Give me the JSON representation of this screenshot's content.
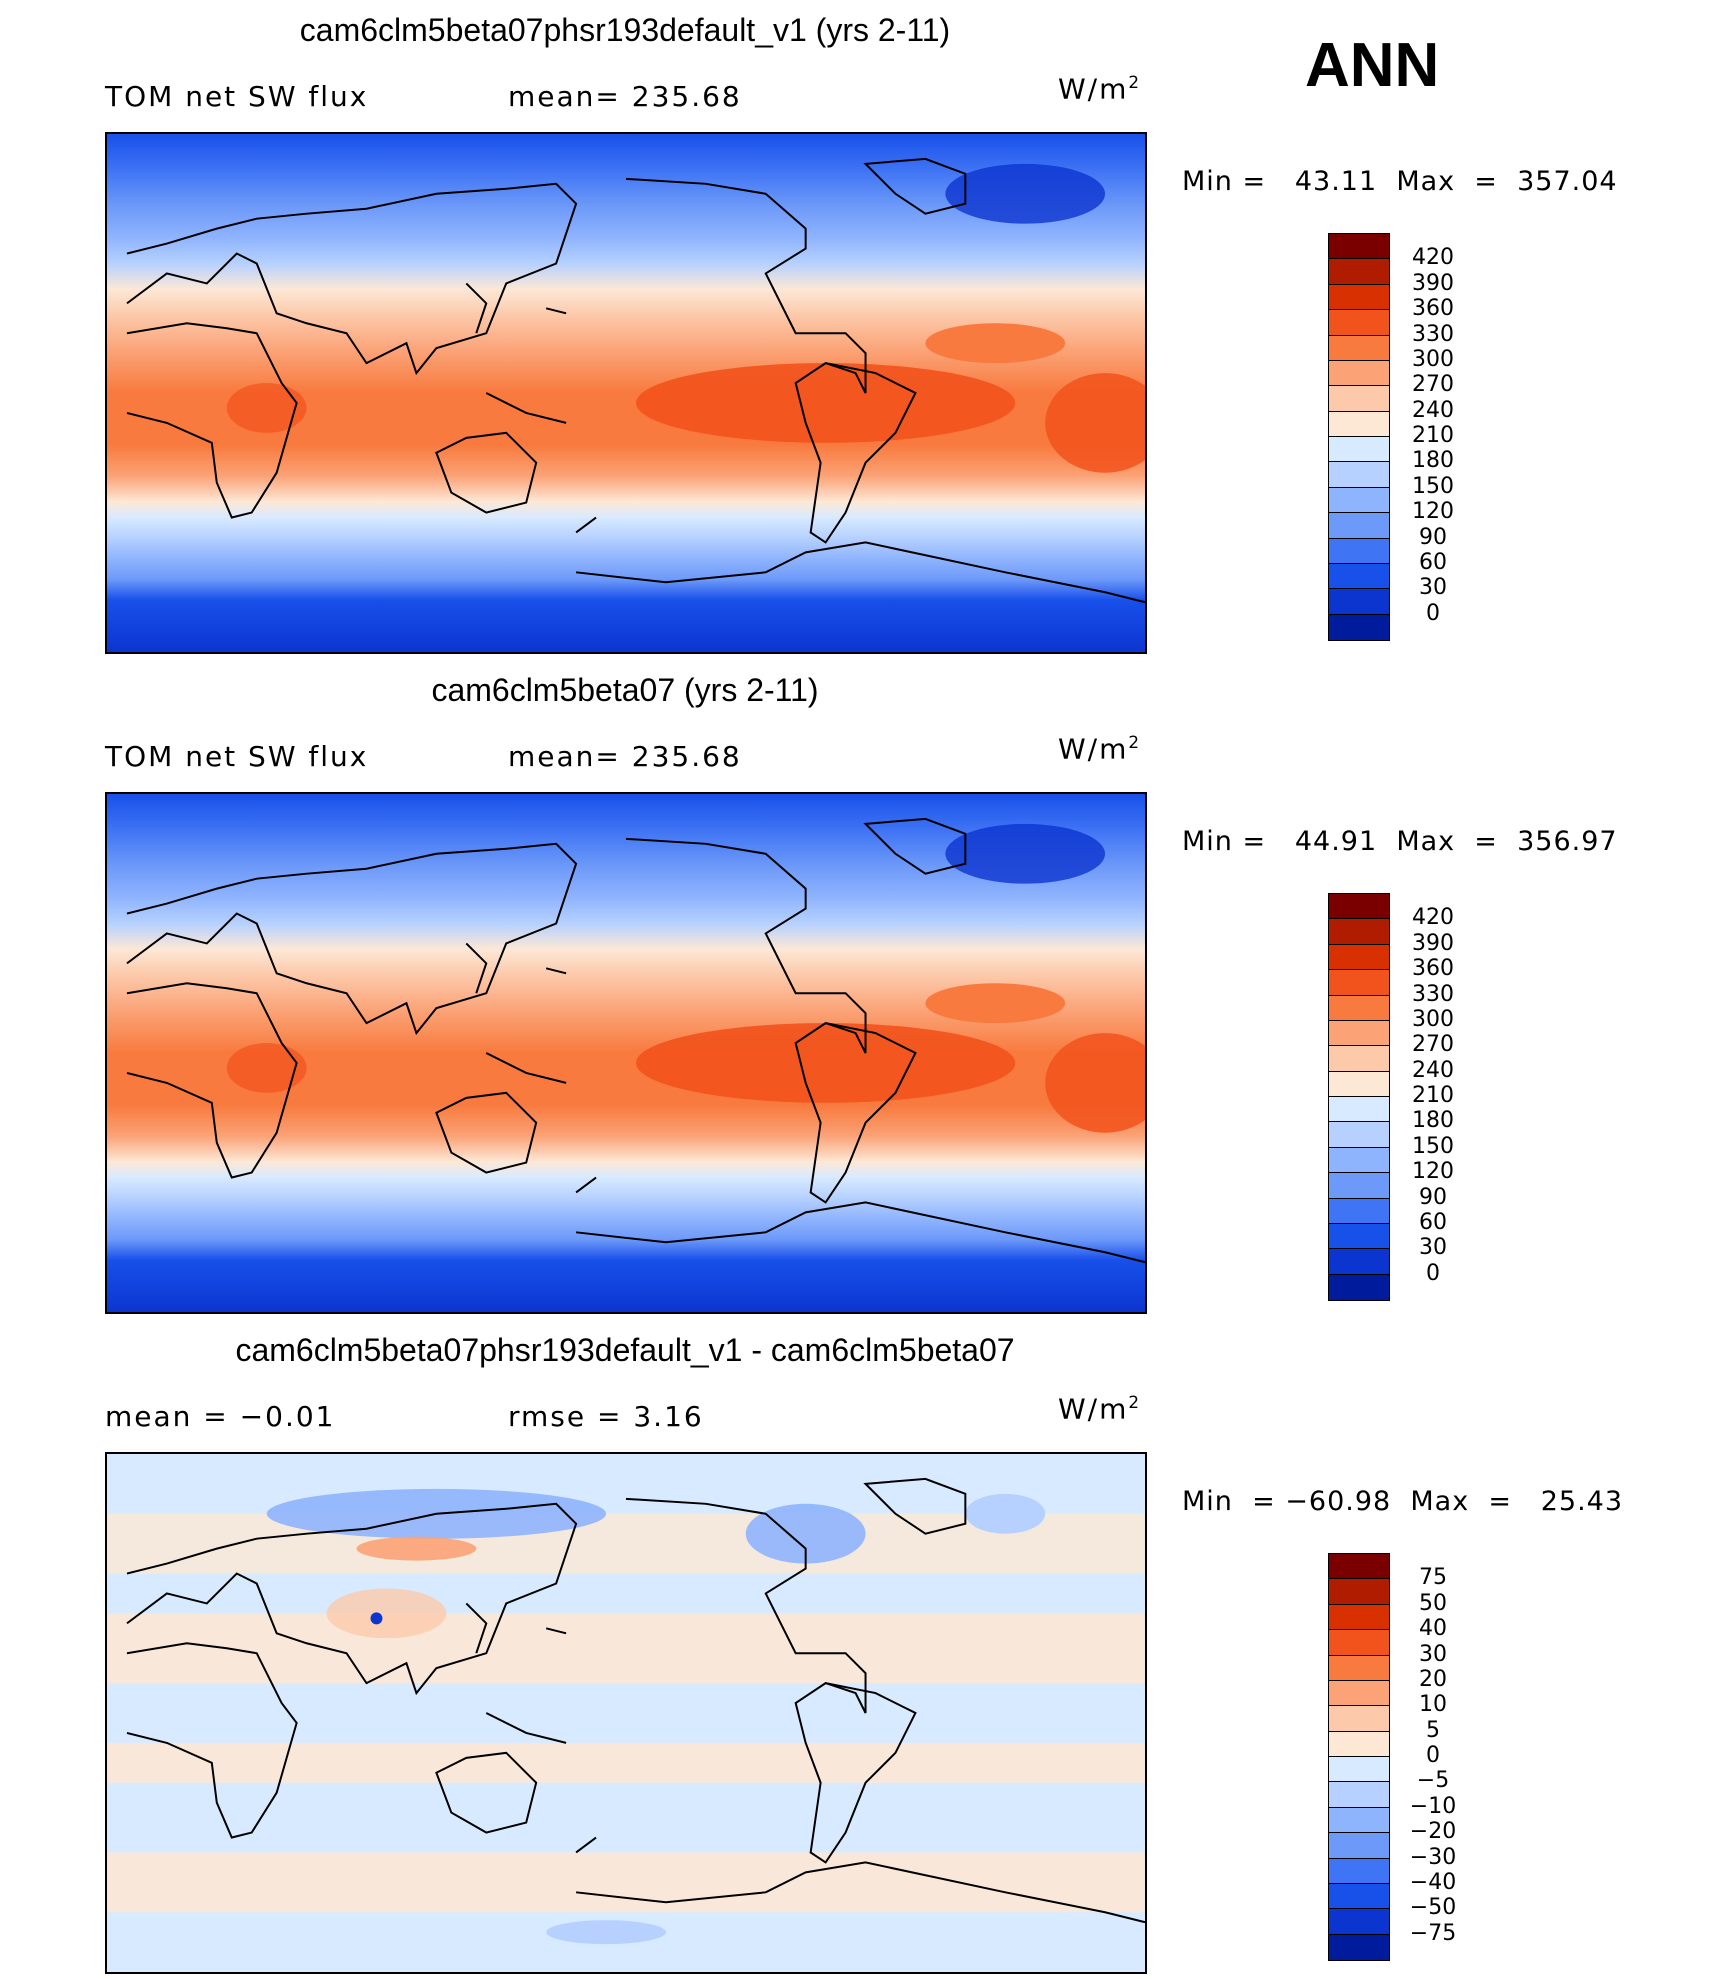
{
  "season": "ANN",
  "panels": [
    {
      "title": "cam6clm5beta07phsr193default_v1 (yrs 2-11)",
      "left_text": "TOM net SW flux",
      "mid_text": "mean= 235.68",
      "units": "W/m",
      "units_sup": "2",
      "minmax": "Min =   43.11  Max  =  357.04",
      "kind": "abs"
    },
    {
      "title": "cam6clm5beta07 (yrs 2-11)",
      "left_text": "TOM net SW flux",
      "mid_text": "mean= 235.68",
      "units": "W/m",
      "units_sup": "2",
      "minmax": "Min =   44.91  Max  =  356.97",
      "kind": "abs"
    },
    {
      "title": "cam6clm5beta07phsr193default_v1 - cam6clm5beta07",
      "left_text": "mean  =    −0.01",
      "mid_text": "rmse  =     3.16",
      "units": "W/m",
      "units_sup": "2",
      "minmax": "Min  = −60.98  Max  =   25.43",
      "kind": "diff"
    }
  ],
  "colorbars": {
    "abs": {
      "labels": [
        "420",
        "390",
        "360",
        "330",
        "300",
        "270",
        "240",
        "210",
        "180",
        "150",
        "120",
        "90",
        "60",
        "30",
        "0"
      ],
      "colors": [
        "#7a0000",
        "#b01c00",
        "#d83000",
        "#f2521c",
        "#f87a3e",
        "#fba276",
        "#fcc9aa",
        "#fde8d6",
        "#d8eaff",
        "#b6d1ff",
        "#8fb4fe",
        "#6d99f9",
        "#3f74f4",
        "#1850ea",
        "#0c35d0",
        "#001b9c"
      ]
    },
    "diff": {
      "labels": [
        "75",
        "50",
        "40",
        "30",
        "20",
        "10",
        "5",
        "0",
        "−5",
        "−10",
        "−20",
        "−30",
        "−40",
        "−50",
        "−75"
      ],
      "colors": [
        "#7a0000",
        "#b01c00",
        "#d83000",
        "#f2521c",
        "#f87a3e",
        "#fba276",
        "#fcc9aa",
        "#fde8d6",
        "#d8eaff",
        "#b6d1ff",
        "#8fb4fe",
        "#6d99f9",
        "#3f74f4",
        "#1850ea",
        "#0c35d0",
        "#001b9c"
      ]
    }
  }
}
